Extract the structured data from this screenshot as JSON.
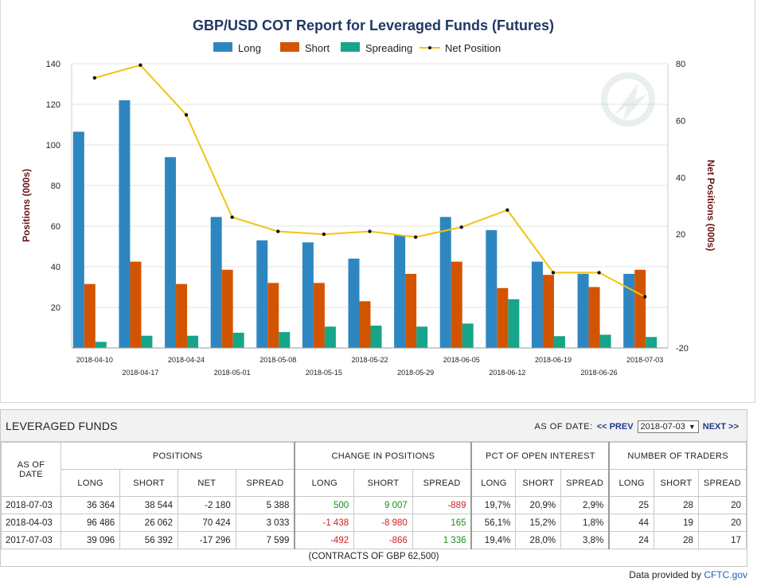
{
  "chart_data": {
    "type": "bar",
    "title": "GBP/USD COT Report for Leveraged Funds (Futures)",
    "ylabel": "Positions (000s)",
    "y2label": "Net Positions (000s)",
    "ylim": [
      0,
      140
    ],
    "y2lim": [
      -20,
      80
    ],
    "yticks": [
      20,
      40,
      60,
      80,
      100,
      120,
      140
    ],
    "y2ticks": [
      -20,
      20,
      40,
      60,
      80
    ],
    "categories": [
      "2018-04-10",
      "2018-04-17",
      "2018-04-24",
      "2018-05-01",
      "2018-05-08",
      "2018-05-15",
      "2018-05-22",
      "2018-05-29",
      "2018-06-05",
      "2018-06-12",
      "2018-06-19",
      "2018-06-26",
      "2018-07-03"
    ],
    "series": [
      {
        "name": "Long",
        "color": "#2e86c1",
        "values": [
          106.5,
          122,
          94,
          64.5,
          53,
          52,
          44,
          55.5,
          64.5,
          58,
          42.5,
          36.5,
          36.5
        ]
      },
      {
        "name": "Short",
        "color": "#d35400",
        "values": [
          31.5,
          42.5,
          31.5,
          38.5,
          32,
          32,
          23,
          36.5,
          42.5,
          29.5,
          36,
          30,
          38.5
        ]
      },
      {
        "name": "Spreading",
        "color": "#17a589",
        "values": [
          3,
          6,
          6,
          7.5,
          7.8,
          10.5,
          11,
          10.5,
          12,
          24,
          5.8,
          6.5,
          5.4
        ]
      },
      {
        "name": "Net Position",
        "color": "#f1c40f",
        "axis": "right",
        "values": [
          75,
          79.5,
          62,
          26,
          21,
          20,
          21,
          19,
          22.5,
          28.5,
          6.5,
          6.5,
          -2
        ]
      }
    ],
    "legend": "top-center",
    "grid": true
  },
  "panel": {
    "title": "LEVERAGED FUNDS",
    "as_of_label": "AS OF DATE:",
    "prev_label": "<< PREV",
    "selected_date": "2018-07-03",
    "next_label": "NEXT >>"
  },
  "table": {
    "as_of_header": "AS OF DATE",
    "groups": [
      "POSITIONS",
      "CHANGE IN POSITIONS",
      "PCT OF OPEN INTEREST",
      "NUMBER OF TRADERS"
    ],
    "subheaders": [
      "LONG",
      "SHORT",
      "NET",
      "SPREAD",
      "LONG",
      "SHORT",
      "SPREAD",
      "LONG",
      "SHORT",
      "SPREAD",
      "LONG",
      "SHORT",
      "SPREAD"
    ],
    "rows": [
      {
        "date": "2018-07-03",
        "cells": [
          "36 364",
          "38 544",
          "-2 180",
          "5 388",
          "500",
          "9 007",
          "-889",
          "19,7%",
          "20,9%",
          "2,9%",
          "25",
          "28",
          "20"
        ]
      },
      {
        "date": "2018-04-03",
        "cells": [
          "96 486",
          "26 062",
          "70 424",
          "3 033",
          "-1 438",
          "-8 980",
          "165",
          "56,1%",
          "15,2%",
          "1,8%",
          "44",
          "19",
          "20"
        ]
      },
      {
        "date": "2017-07-03",
        "cells": [
          "39 096",
          "56 392",
          "-17 296",
          "7 599",
          "-492",
          "-866",
          "1 336",
          "19,4%",
          "28,0%",
          "3,8%",
          "24",
          "28",
          "17"
        ]
      }
    ],
    "note": "(CONTRACTS OF GBP 62,500)"
  },
  "footer": {
    "prefix": "Data provided by ",
    "link": "CFTC.gov"
  },
  "colors": {
    "positive": "#1a8f1a",
    "negative": "#d32020",
    "link": "#1f3a8a"
  }
}
